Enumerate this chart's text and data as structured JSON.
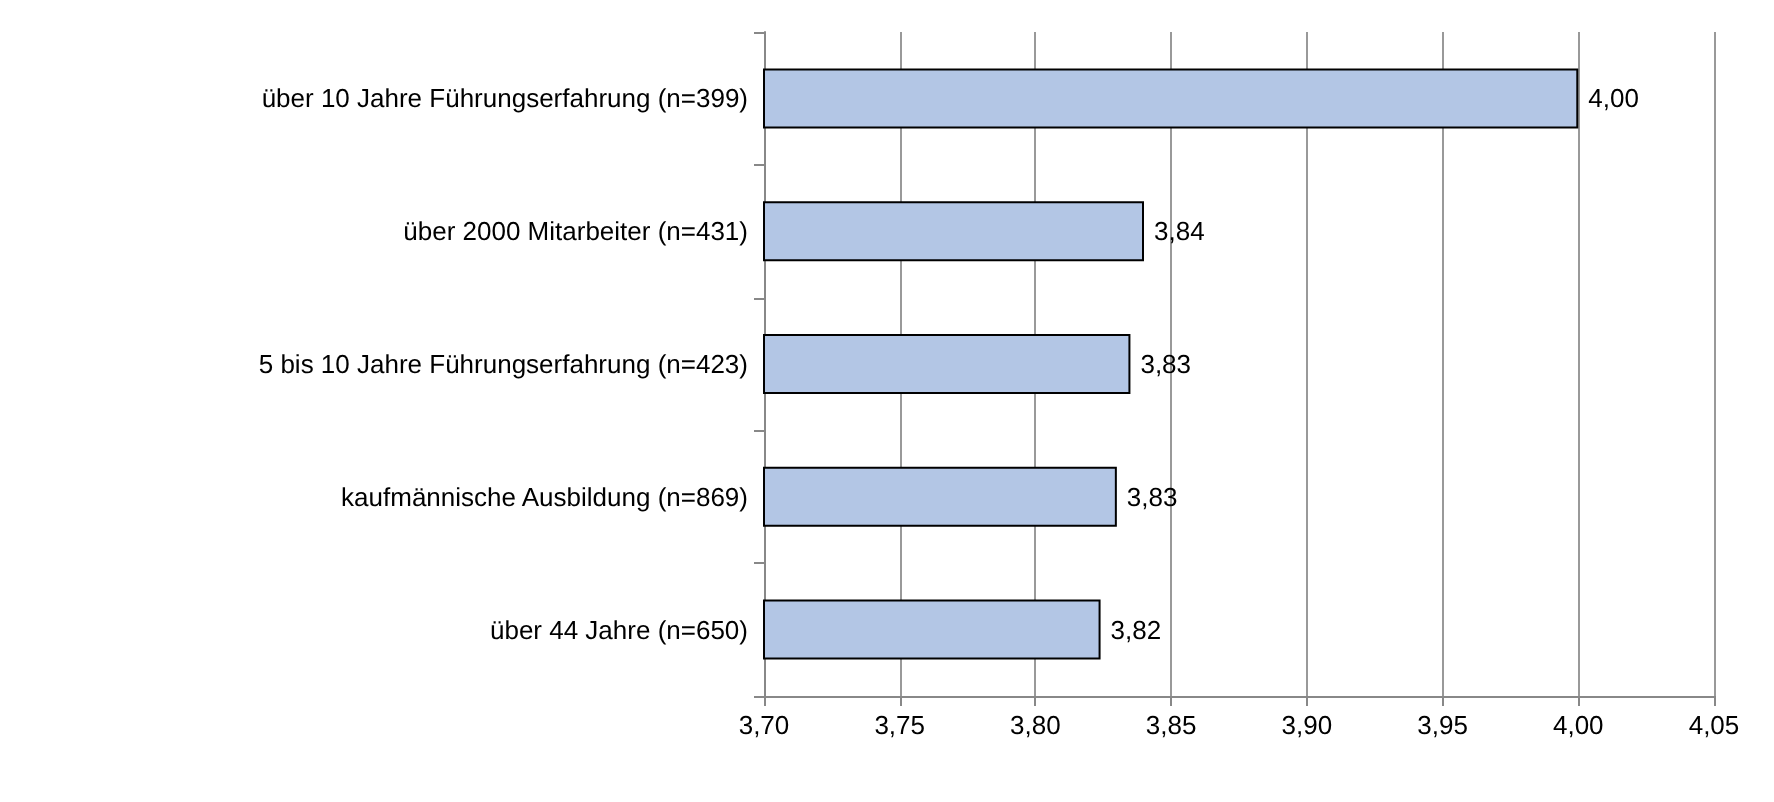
{
  "chart_data": {
    "type": "bar",
    "orientation": "horizontal",
    "categories": [
      "über 10 Jahre Führungserfahrung (n=399)",
      "über 2000 Mitarbeiter (n=431)",
      "5 bis 10 Jahre Führungserfahrung (n=423)",
      "kaufmännische Ausbildung (n=869)",
      "über 44 Jahre (n=650)"
    ],
    "values": [
      4.0,
      3.84,
      3.835,
      3.83,
      3.824
    ],
    "value_labels": [
      "4,00",
      "3,84",
      "3,83",
      "3,83",
      "3,82"
    ],
    "color": "#b3c6e5",
    "xlim": [
      3.7,
      4.05
    ],
    "xticks": [
      {
        "value": 3.7,
        "label": "3,70"
      },
      {
        "value": 3.75,
        "label": "3,75"
      },
      {
        "value": 3.8,
        "label": "3,80"
      },
      {
        "value": 3.85,
        "label": "3,85"
      },
      {
        "value": 3.9,
        "label": "3,90"
      },
      {
        "value": 3.95,
        "label": "3,95"
      },
      {
        "value": 4.0,
        "label": "4,00"
      },
      {
        "value": 4.05,
        "label": "4,05"
      }
    ],
    "grid": "x"
  }
}
